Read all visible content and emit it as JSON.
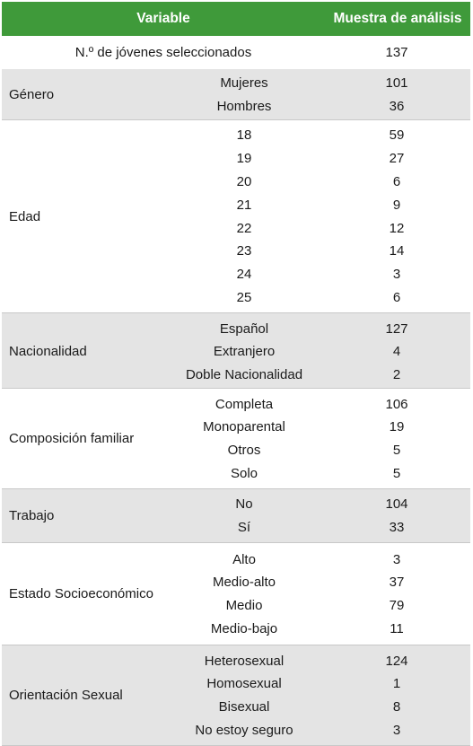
{
  "header": {
    "variable": "Variable",
    "sample": "Muestra de análisis"
  },
  "selected": {
    "label": "N.º de jóvenes seleccionados",
    "value": "137"
  },
  "groups": [
    {
      "name": "Género",
      "rows": [
        {
          "sub": "Mujeres",
          "value": "101"
        },
        {
          "sub": "Hombres",
          "value": "36"
        }
      ]
    },
    {
      "name": "Edad",
      "rows": [
        {
          "sub": "18",
          "value": "59"
        },
        {
          "sub": "19",
          "value": "27"
        },
        {
          "sub": "20",
          "value": "6"
        },
        {
          "sub": "21",
          "value": "9"
        },
        {
          "sub": "22",
          "value": "12"
        },
        {
          "sub": "23",
          "value": "14"
        },
        {
          "sub": "24",
          "value": "3"
        },
        {
          "sub": "25",
          "value": "6"
        }
      ]
    },
    {
      "name": "Nacionalidad",
      "rows": [
        {
          "sub": "Español",
          "value": "127"
        },
        {
          "sub": "Extranjero",
          "value": "4"
        },
        {
          "sub": "Doble Nacionalidad",
          "value": "2"
        }
      ]
    },
    {
      "name": "Composición familiar",
      "rows": [
        {
          "sub": "Completa",
          "value": "106"
        },
        {
          "sub": "Monoparental",
          "value": "19"
        },
        {
          "sub": "Otros",
          "value": "5"
        },
        {
          "sub": "Solo",
          "value": "5"
        }
      ]
    },
    {
      "name": "Trabajo",
      "rows": [
        {
          "sub": "No",
          "value": "104"
        },
        {
          "sub": "Sí",
          "value": "33"
        }
      ]
    },
    {
      "name": "Estado Socioeconómico",
      "rows": [
        {
          "sub": "Alto",
          "value": "3"
        },
        {
          "sub": "Medio-alto",
          "value": "37"
        },
        {
          "sub": "Medio",
          "value": "79"
        },
        {
          "sub": "Medio-bajo",
          "value": "11"
        }
      ]
    },
    {
      "name": "Orientación Sexual",
      "rows": [
        {
          "sub": "Heterosexual",
          "value": "124"
        },
        {
          "sub": "Homosexual",
          "value": "1"
        },
        {
          "sub": "Bisexual",
          "value": "8"
        },
        {
          "sub": "No estoy seguro",
          "value": "3"
        }
      ]
    }
  ]
}
